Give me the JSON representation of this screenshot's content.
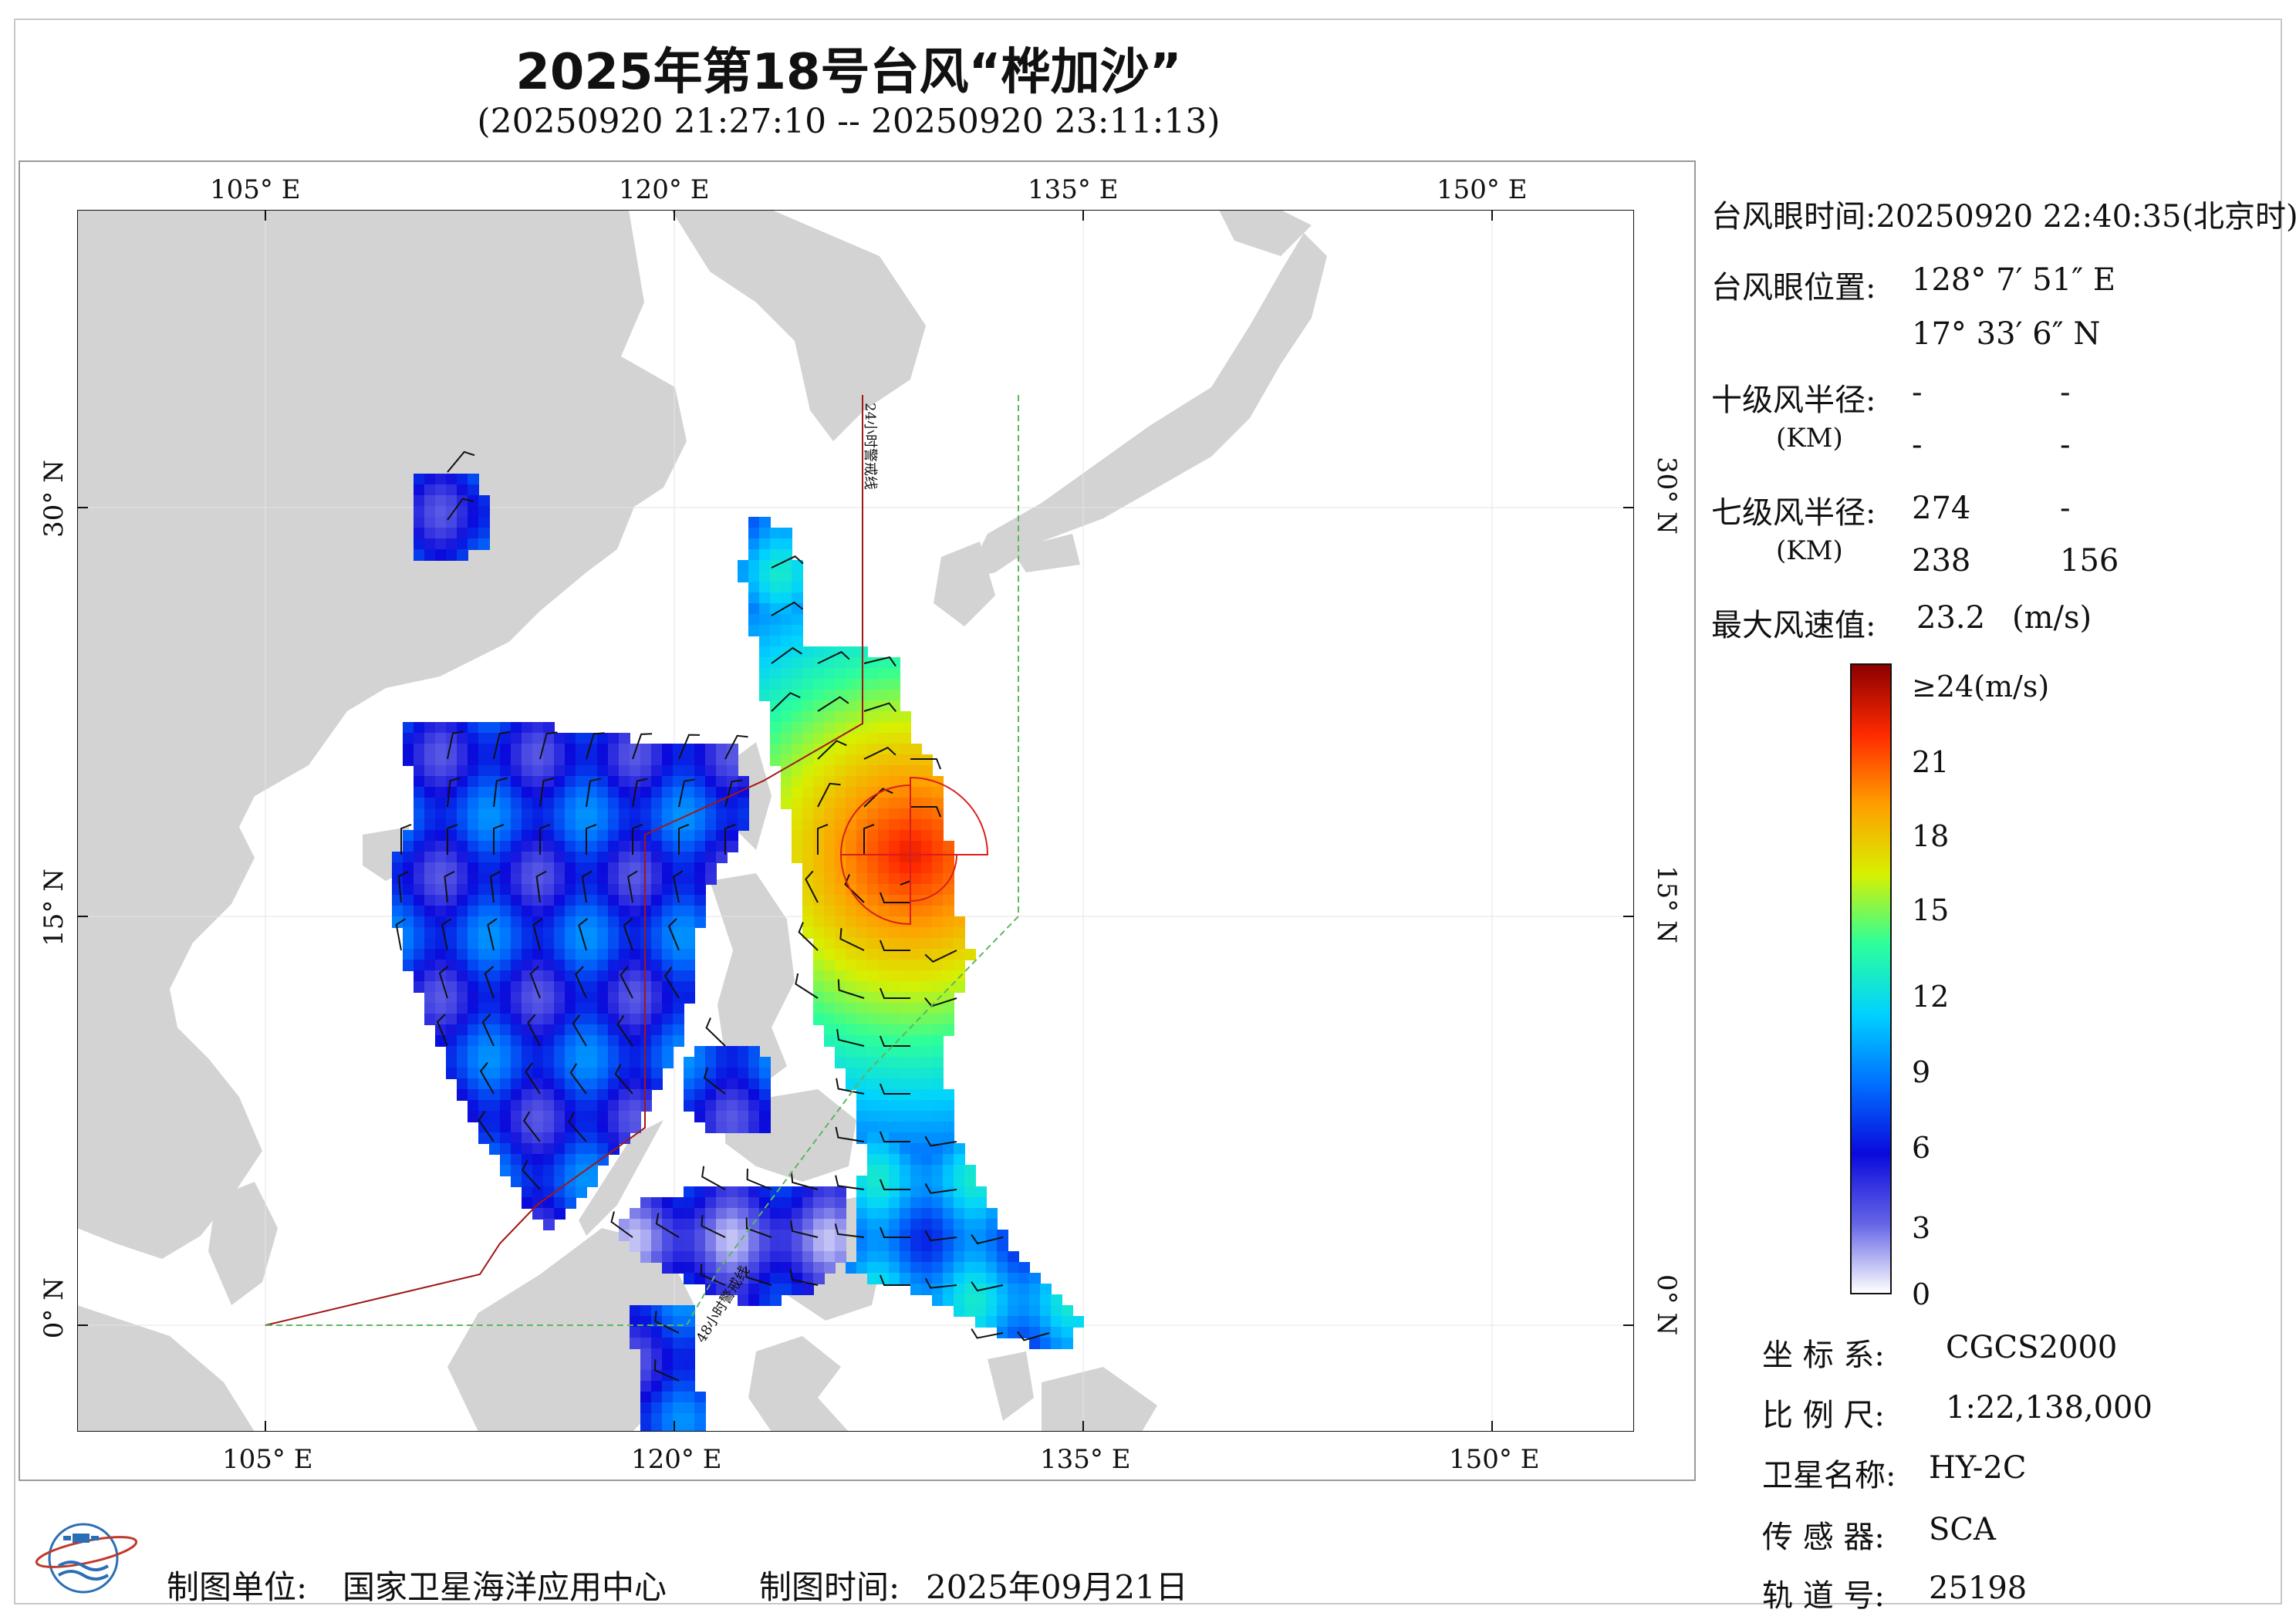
{
  "title": "2025年第18号台风“桦加沙”",
  "subtitle": "(20250920 21:27:10 -- 20250920 23:11:13)",
  "map": {
    "lon_ticks": [
      "105° E",
      "120° E",
      "135° E",
      "150° E"
    ],
    "lat_ticks": [
      "30° N",
      "15° N",
      "0° N"
    ],
    "line_24h": "24小时警戒线",
    "line_48h": "48小时警戒线",
    "colors": {
      "land": "#d3d3d3",
      "sea": "#ffffff",
      "warning_24h": "#a01818",
      "warning_48h": "#5cb85c",
      "wind_circle": "#d81e1e"
    }
  },
  "info": {
    "eye_time_label": "台风眼时间:",
    "eye_time_value": "20250920 22:40:35(北京时)",
    "eye_pos_label": "台风眼位置:",
    "eye_lon": "128° 7′ 51″ E",
    "eye_lat": "17° 33′ 6″ N",
    "r10_label": "十级风半径:",
    "km_label": "(KM)",
    "r10_row1": [
      "-",
      "-"
    ],
    "r10_row2": [
      "-",
      "-"
    ],
    "r7_label": "七级风半径:",
    "r7_row1": [
      "274",
      "-"
    ],
    "r7_row2": [
      "238",
      "156"
    ],
    "maxwind_label": "最大风速值:",
    "maxwind_value": "23.2",
    "maxwind_unit": "(m/s)"
  },
  "colorbar": {
    "labels": [
      "≥24(m/s)",
      "21",
      "18",
      "15",
      "12",
      "9",
      "6",
      "3",
      "0"
    ],
    "stops": [
      "#ffffff",
      "#6464e6",
      "#0a0adc",
      "#0070ff",
      "#00d2ff",
      "#2dff9a",
      "#d8f000",
      "#ff9e00",
      "#ff2a00",
      "#8c0000"
    ]
  },
  "meta": {
    "crs_label": "坐 标 系:",
    "crs_value": "CGCS2000",
    "scale_label": "比 例 尺:",
    "scale_value": "1:22,138,000",
    "sat_label": "卫星名称:",
    "sat_value": "HY-2C",
    "sensor_label": "传 感 器:",
    "sensor_value": "SCA",
    "orbit_label": "轨 道 号:",
    "orbit_value": "25198"
  },
  "footer": {
    "org_label": "制图单位:",
    "org_value": "国家卫星海洋应用中心",
    "date_label": "制图时间:",
    "date_value": "2025年09月21日"
  }
}
